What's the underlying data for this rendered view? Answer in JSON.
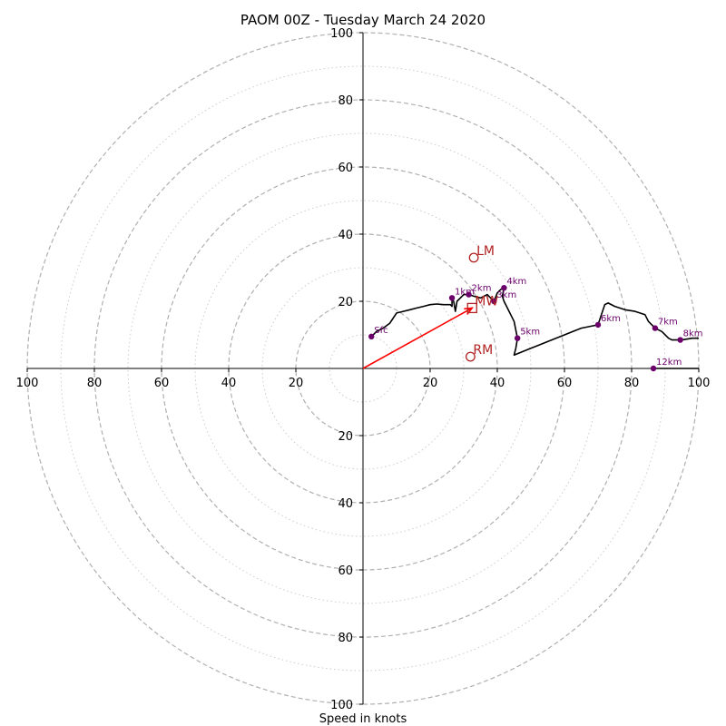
{
  "chart_data": {
    "type": "hodograph",
    "title": "PAOM 00Z - Tuesday March 24 2020",
    "xlabel": "Speed in knots",
    "range": [
      -100,
      100
    ],
    "ring_major": [
      20,
      40,
      60,
      80,
      100
    ],
    "ring_minor": [
      10,
      30,
      50,
      70,
      90
    ],
    "x_tick_labels": [
      "100",
      "80",
      "60",
      "40",
      "20",
      "20",
      "40",
      "60",
      "80",
      "100"
    ],
    "x_tick_values": [
      -100,
      -80,
      -60,
      -40,
      -20,
      20,
      40,
      60,
      80,
      100
    ],
    "y_tick_labels": [
      "100",
      "80",
      "60",
      "40",
      "20",
      "20",
      "40",
      "60",
      "80",
      "100"
    ],
    "y_tick_values": [
      100,
      80,
      60,
      40,
      20,
      -20,
      -40,
      -60,
      -80,
      -100
    ],
    "colors": {
      "trace": "#000000",
      "points": "#6b006b",
      "motion": "#b22222",
      "vector": "#ff0000",
      "grid": "#b0b0b0"
    },
    "trace": [
      [
        2.5,
        9.5
      ],
      [
        4,
        11
      ],
      [
        6,
        12
      ],
      [
        8,
        13.5
      ],
      [
        9,
        15
      ],
      [
        10,
        16.5
      ],
      [
        12,
        17
      ],
      [
        14,
        17.5
      ],
      [
        16,
        18
      ],
      [
        18,
        18.5
      ],
      [
        20,
        19
      ],
      [
        22,
        19.2
      ],
      [
        24,
        19
      ],
      [
        26,
        19
      ],
      [
        26.5,
        18.5
      ],
      [
        26.5,
        21
      ],
      [
        27,
        20
      ],
      [
        27.5,
        17
      ],
      [
        28,
        20
      ],
      [
        29,
        21
      ],
      [
        30,
        22
      ],
      [
        31.5,
        22
      ],
      [
        33,
        21.5
      ],
      [
        35,
        21
      ],
      [
        37,
        22
      ],
      [
        38,
        21
      ],
      [
        39,
        20
      ],
      [
        40,
        22.5
      ],
      [
        41,
        23.5
      ],
      [
        42,
        24
      ],
      [
        41.5,
        21.5
      ],
      [
        42,
        20
      ],
      [
        43,
        18
      ],
      [
        44,
        16
      ],
      [
        45,
        14
      ],
      [
        46,
        9
      ],
      [
        45.5,
        6
      ],
      [
        45,
        4
      ],
      [
        50,
        6
      ],
      [
        55,
        8
      ],
      [
        60,
        10
      ],
      [
        65,
        12
      ],
      [
        70,
        13
      ],
      [
        71,
        16
      ],
      [
        72,
        19
      ],
      [
        73,
        19.5
      ],
      [
        75,
        18.5
      ],
      [
        78,
        17.5
      ],
      [
        81,
        17
      ],
      [
        84,
        16
      ],
      [
        85,
        14
      ],
      [
        87,
        12
      ],
      [
        89,
        11
      ],
      [
        91,
        9
      ],
      [
        92,
        8.5
      ],
      [
        95,
        8.5
      ],
      [
        98,
        9
      ],
      [
        100,
        9
      ]
    ],
    "trace_12km": [
      [
        86.5,
        0
      ],
      [
        100,
        0
      ]
    ],
    "points": [
      {
        "label": "Sfc",
        "x": 2.5,
        "y": 9.5
      },
      {
        "label": "1km",
        "x": 26.5,
        "y": 21
      },
      {
        "label": "2km",
        "x": 31.5,
        "y": 22
      },
      {
        "label": "3km",
        "x": 39,
        "y": 20
      },
      {
        "label": "4km",
        "x": 42,
        "y": 24
      },
      {
        "label": "5km",
        "x": 46,
        "y": 9
      },
      {
        "label": "6km",
        "x": 70,
        "y": 13
      },
      {
        "label": "7km",
        "x": 87,
        "y": 12
      },
      {
        "label": "8km",
        "x": 94.5,
        "y": 8.5
      },
      {
        "label": "12km",
        "x": 86.5,
        "y": 0
      }
    ],
    "storm_motion": [
      {
        "label": "LM",
        "x": 33,
        "y": 33,
        "marker": "circle"
      },
      {
        "label": "RM",
        "x": 32,
        "y": 3.5,
        "marker": "circle"
      },
      {
        "label": "MW",
        "x": 32.5,
        "y": 18,
        "marker": "square"
      }
    ],
    "mean_wind_vector": {
      "from": [
        0,
        0
      ],
      "to": [
        32.5,
        18
      ]
    }
  }
}
